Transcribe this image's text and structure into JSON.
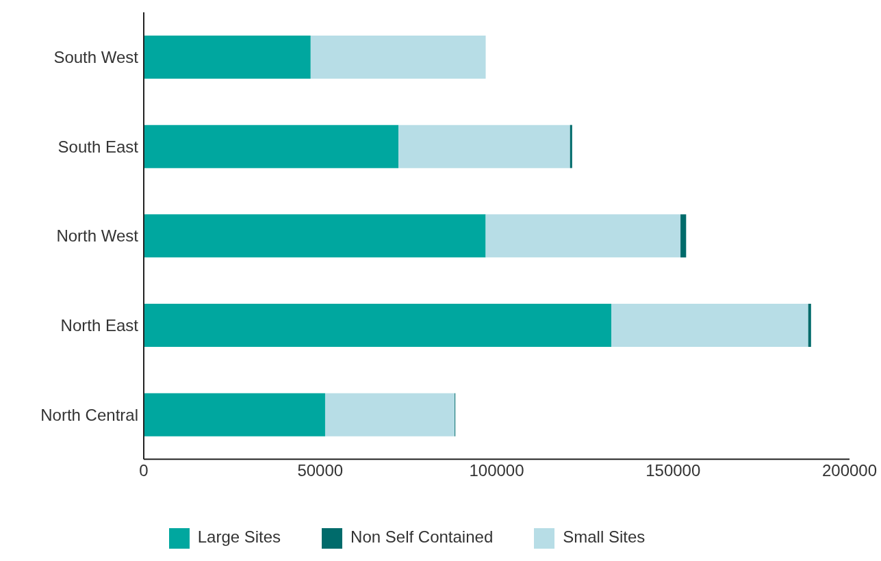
{
  "chart_data": {
    "type": "bar",
    "orientation": "horizontal",
    "stacked": true,
    "categories": [
      "South West",
      "South East",
      "North West",
      "North East",
      "North Central"
    ],
    "series": [
      {
        "name": "Large Sites",
        "color": "#00a79f",
        "values": [
          47300,
          72200,
          96900,
          132500,
          51400
        ]
      },
      {
        "name": "Small Sites",
        "color": "#b7dde6",
        "values": [
          49600,
          48600,
          55200,
          55800,
          36700
        ]
      },
      {
        "name": "Non Self Contained",
        "color": "#006b6b",
        "values": [
          0,
          600,
          1600,
          800,
          200
        ]
      }
    ],
    "xlim": [
      0,
      200000
    ],
    "xticks": [
      0,
      50000,
      100000,
      150000,
      200000
    ],
    "grid": false,
    "legend": "bottom"
  }
}
